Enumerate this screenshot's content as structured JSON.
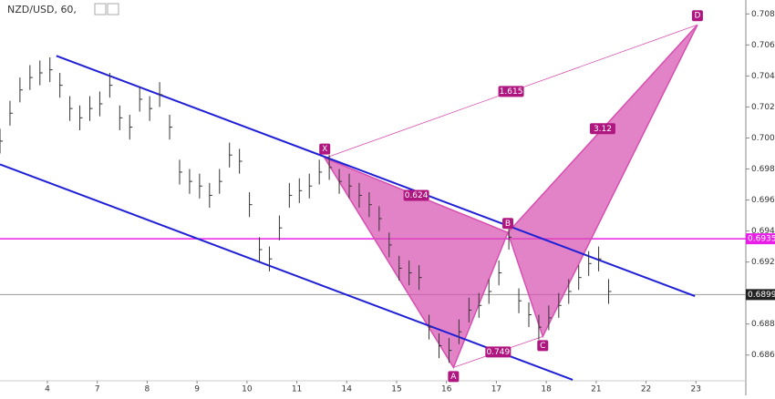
{
  "chart_data": {
    "type": "ohlc",
    "title": "NZD/USD, 60,",
    "xlim": [
      -0.95,
      14.0
    ],
    "ylim": [
      0.6834,
      0.7089
    ],
    "xticks": [
      {
        "value": 0,
        "label": "4"
      },
      {
        "value": 1,
        "label": "7"
      },
      {
        "value": 2,
        "label": "8"
      },
      {
        "value": 3,
        "label": "9"
      },
      {
        "value": 4,
        "label": "10"
      },
      {
        "value": 5,
        "label": "11"
      },
      {
        "value": 6,
        "label": "14"
      },
      {
        "value": 7,
        "label": "15"
      },
      {
        "value": 8,
        "label": "16"
      },
      {
        "value": 9,
        "label": "17"
      },
      {
        "value": 10,
        "label": "18"
      },
      {
        "value": 11,
        "label": "21"
      },
      {
        "value": 12,
        "label": "22"
      },
      {
        "value": 13,
        "label": "23"
      }
    ],
    "yticks": [
      {
        "value": 0.686,
        "label": "0.6860"
      },
      {
        "value": 0.688,
        "label": "0.6880"
      },
      {
        "value": 0.69,
        "label": "0.6900"
      },
      {
        "value": 0.692,
        "label": "0.6920"
      },
      {
        "value": 0.694,
        "label": "0.6940"
      },
      {
        "value": 0.696,
        "label": "0.6960"
      },
      {
        "value": 0.698,
        "label": "0.6980"
      },
      {
        "value": 0.7,
        "label": "0.7000"
      },
      {
        "value": 0.702,
        "label": "0.7020"
      },
      {
        "value": 0.704,
        "label": "0.7040"
      },
      {
        "value": 0.706,
        "label": "0.7060"
      },
      {
        "value": 0.708,
        "label": "0.7080"
      }
    ],
    "bar_color": "#333333",
    "x": [
      -0.95,
      -0.75,
      -0.55,
      -0.35,
      -0.15,
      0.05,
      0.25,
      0.45,
      0.65,
      0.85,
      1.05,
      1.25,
      1.45,
      1.65,
      1.85,
      2.05,
      2.25,
      2.45,
      2.65,
      2.85,
      3.05,
      3.25,
      3.45,
      3.65,
      3.85,
      4.05,
      4.25,
      4.45,
      4.65,
      4.85,
      5.05,
      5.25,
      5.45,
      5.65,
      5.85,
      6.05,
      6.25,
      6.45,
      6.65,
      6.85,
      7.05,
      7.25,
      7.45,
      7.65,
      7.85,
      8.05,
      8.25,
      8.45,
      8.65,
      8.85,
      9.05,
      9.25,
      9.45,
      9.65,
      9.85,
      10.05,
      10.25,
      10.45,
      10.65,
      10.85,
      11.05,
      11.25
    ],
    "high": [
      0.7006,
      0.7024,
      0.7039,
      0.7047,
      0.705,
      0.7052,
      0.7042,
      0.7027,
      0.7021,
      0.7027,
      0.703,
      0.7042,
      0.7021,
      0.7015,
      0.7033,
      0.7027,
      0.7036,
      0.7015,
      0.6986,
      0.698,
      0.6977,
      0.6971,
      0.698,
      0.6997,
      0.6993,
      0.6965,
      0.6936,
      0.693,
      0.695,
      0.6971,
      0.6974,
      0.6977,
      0.6986,
      0.6989,
      0.698,
      0.6977,
      0.6971,
      0.6965,
      0.6956,
      0.6939,
      0.6924,
      0.6921,
      0.6918,
      0.6886,
      0.6874,
      0.6871,
      0.6883,
      0.6897,
      0.69,
      0.6909,
      0.6921,
      0.6944,
      0.6903,
      0.6894,
      0.6886,
      0.6892,
      0.69,
      0.6909,
      0.6918,
      0.6927,
      0.693,
      0.6909
    ],
    "low": [
      0.699,
      0.7008,
      0.7023,
      0.7031,
      0.7034,
      0.7036,
      0.7026,
      0.7011,
      0.7005,
      0.7011,
      0.7014,
      0.7026,
      0.7005,
      0.6999,
      0.7017,
      0.7011,
      0.702,
      0.6999,
      0.697,
      0.6964,
      0.6961,
      0.6955,
      0.6964,
      0.6981,
      0.6977,
      0.6949,
      0.692,
      0.6914,
      0.6934,
      0.6955,
      0.6958,
      0.6961,
      0.697,
      0.6973,
      0.6964,
      0.6961,
      0.6955,
      0.6949,
      0.694,
      0.6923,
      0.6908,
      0.6905,
      0.6902,
      0.687,
      0.6858,
      0.6855,
      0.6867,
      0.6881,
      0.6884,
      0.6893,
      0.6905,
      0.6928,
      0.6887,
      0.6878,
      0.687,
      0.6876,
      0.6884,
      0.6893,
      0.6902,
      0.6911,
      0.6914,
      0.6893
    ],
    "close": [
      0.6998,
      0.7016,
      0.7031,
      0.7039,
      0.7042,
      0.7044,
      0.7034,
      0.7019,
      0.7013,
      0.7019,
      0.7022,
      0.7034,
      0.7013,
      0.7007,
      0.7025,
      0.7019,
      0.7028,
      0.7007,
      0.6978,
      0.6972,
      0.6969,
      0.6963,
      0.6972,
      0.6989,
      0.6985,
      0.6957,
      0.6928,
      0.6922,
      0.6942,
      0.6963,
      0.6966,
      0.6969,
      0.6978,
      0.6981,
      0.6972,
      0.6969,
      0.6963,
      0.6957,
      0.6948,
      0.6931,
      0.6916,
      0.6913,
      0.691,
      0.6878,
      0.6866,
      0.6863,
      0.6875,
      0.6889,
      0.6892,
      0.6901,
      0.6913,
      0.6936,
      0.6895,
      0.6886,
      0.6878,
      0.6884,
      0.6892,
      0.6901,
      0.691,
      0.6919,
      0.6922,
      0.6901
    ],
    "channels": [
      {
        "color": "#1f1fd6",
        "x": [
          0.18,
          12.98
        ],
        "y": [
          0.7053,
          0.6898
        ]
      },
      {
        "color": "#1f1fd6",
        "x": [
          -0.95,
          10.53
        ],
        "y": [
          0.6983,
          0.6844
        ]
      }
    ],
    "pattern": {
      "color": "#d64fb0",
      "points": [
        {
          "label": "X",
          "x": 5.56,
          "y": 0.6987
        },
        {
          "label": "A",
          "x": 8.14,
          "y": 0.6852
        },
        {
          "label": "B",
          "x": 9.23,
          "y": 0.6939
        },
        {
          "label": "C",
          "x": 9.93,
          "y": 0.6872
        },
        {
          "label": "D",
          "x": 13.03,
          "y": 0.7073
        }
      ],
      "ratios": {
        "XB": 0.624,
        "XD": 1.615,
        "BD": 3.12,
        "AC": 0.749
      }
    },
    "hlines": [
      {
        "value": 0.6935,
        "color": "#e91ee9"
      },
      {
        "value": 0.6899,
        "color": "#999999"
      }
    ]
  }
}
